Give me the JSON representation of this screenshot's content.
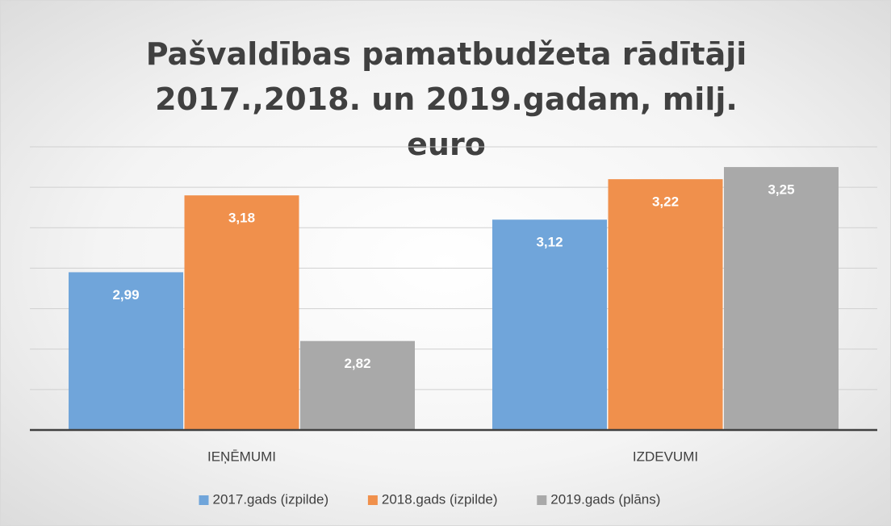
{
  "chart_data": {
    "type": "bar",
    "title": "Pašvaldības pamatbudžeta rādītāji 2017.,2018. un 2019.gadam, milj. euro",
    "categories": [
      "IEŅĒMUMI",
      "IZDEVUMI"
    ],
    "series": [
      {
        "name": "2017.gads (izpilde)",
        "color": "#70a5da",
        "values": [
          2.99,
          3.12
        ],
        "value_labels": [
          "2,99",
          "3,12"
        ]
      },
      {
        "name": "2018.gads (izpilde)",
        "color": "#f0904c",
        "values": [
          3.18,
          3.22
        ],
        "value_labels": [
          "3,18",
          "3,22"
        ]
      },
      {
        "name": "2019.gads (plāns)",
        "color": "#a9a9a9",
        "values": [
          2.82,
          3.25
        ],
        "value_labels": [
          "2,82",
          "3,25"
        ]
      }
    ],
    "ylim": [
      2.6,
      3.3
    ],
    "yticks": [
      2.7,
      2.8,
      2.9,
      3.0,
      3.1,
      3.2,
      3.3
    ],
    "grid": true,
    "legend": "bottom"
  }
}
